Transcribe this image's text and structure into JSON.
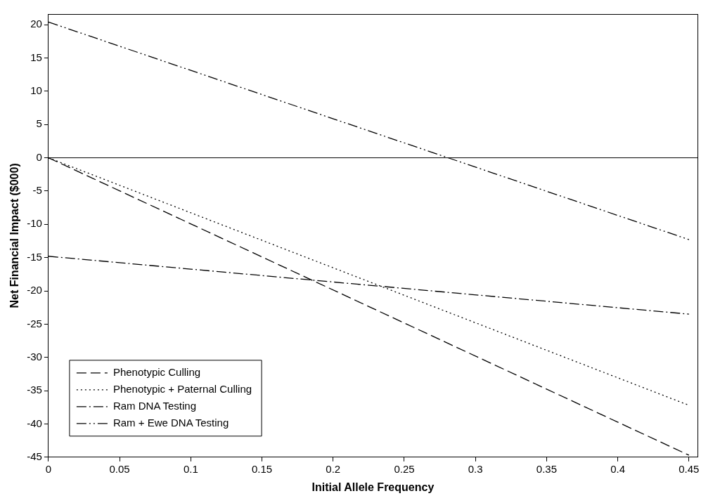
{
  "chart_data": {
    "type": "line",
    "xlabel": "Initial Allele Frequency",
    "ylabel": "Net Financial Impact ($000)",
    "x": [
      0,
      0.45
    ],
    "series": [
      {
        "name": "Phenotypic Culling",
        "color": "#000000",
        "line_style": "dashed",
        "values": [
          0,
          -44.7
        ]
      },
      {
        "name": "Phenotypic + Paternal Culling",
        "color": "#000000",
        "line_style": "dotted",
        "values": [
          0,
          -37.2
        ]
      },
      {
        "name": "Ram DNA Testing",
        "color": "#000000",
        "line_style": "dashdot",
        "values": [
          -14.8,
          -23.5
        ]
      },
      {
        "name": "Ram + Ewe DNA Testing",
        "color": "#000000",
        "line_style": "dashdotdot",
        "values": [
          20.4,
          -12.3
        ]
      }
    ],
    "xlim": [
      0,
      0.456
    ],
    "xticks": [
      0,
      0.05,
      0.1,
      0.15,
      0.2,
      0.25,
      0.3,
      0.35,
      0.4,
      0.45
    ],
    "ylim": [
      -45,
      21.6
    ],
    "yticks": [
      -45,
      -40,
      -35,
      -30,
      -25,
      -20,
      -15,
      -10,
      -5,
      0,
      5,
      10,
      15,
      20
    ],
    "ref_lines": [
      {
        "axis": "y",
        "value": 0,
        "color": "#000000"
      }
    ],
    "grid": false,
    "legend": "bottom left",
    "marker": "none"
  }
}
